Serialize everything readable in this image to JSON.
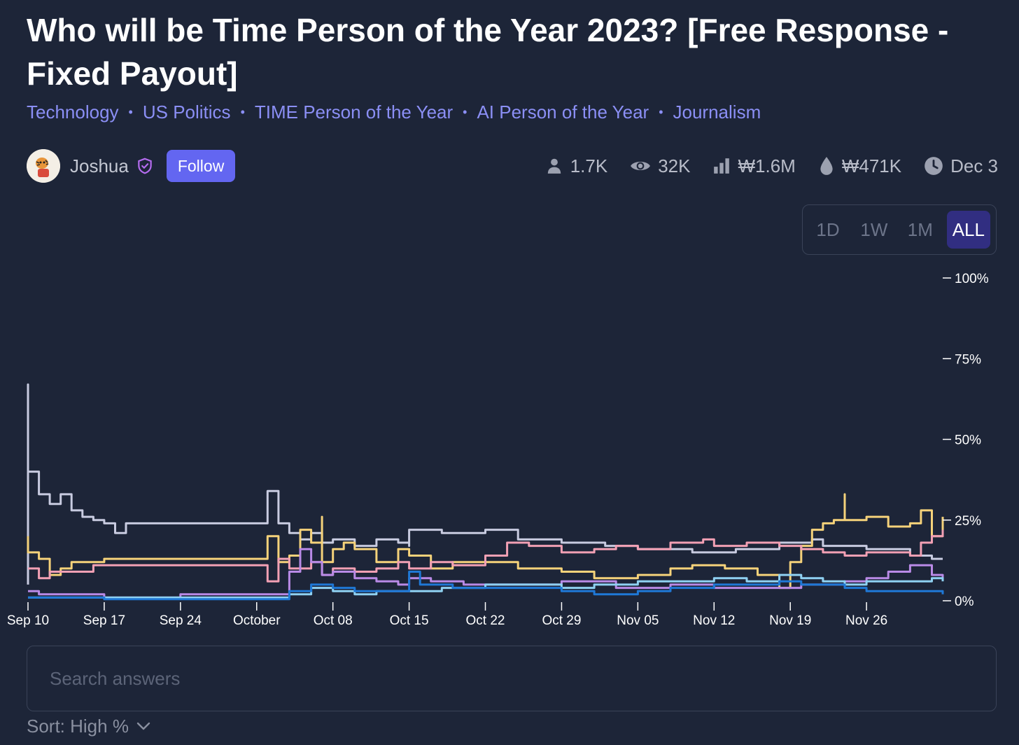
{
  "market": {
    "title": "Who will be Time Person of the Year 2023? [Free Response - Fixed Payout]",
    "tags": [
      "Technology",
      "US Politics",
      "TIME Person of the Year",
      "AI Person of the Year",
      "Journalism"
    ]
  },
  "author": {
    "name": "Joshua",
    "follow_label": "Follow",
    "avatar_icon": "avatar-icon",
    "badge_icon": "shield-check-icon"
  },
  "stats": {
    "traders": "1.7K",
    "views": "32K",
    "volume": "₩1.6M",
    "liquidity": "₩471K",
    "close_date": "Dec 3"
  },
  "range_tabs": {
    "options": [
      "1D",
      "1W",
      "1M",
      "ALL"
    ],
    "selected": "ALL"
  },
  "search": {
    "placeholder": "Search answers",
    "value": ""
  },
  "sort": {
    "label": "Sort: High %"
  },
  "colors": {
    "background": "#1d2538",
    "accent": "#6366f1",
    "tag": "#8b8ff5",
    "series": [
      "#c8cbe0",
      "#f5d27a",
      "#f2a0b4",
      "#b98ae6",
      "#8fd1f2",
      "#1f78d6"
    ]
  },
  "chart_data": {
    "type": "line",
    "ylim": [
      0,
      100
    ],
    "y_ticks": [
      "100%",
      "75%",
      "50%",
      "25%",
      "0%"
    ],
    "x_ticks": [
      "Sep 10",
      "Sep 17",
      "Sep 24",
      "October",
      "Oct 08",
      "Oct 15",
      "Oct 22",
      "Oct 29",
      "Nov 05",
      "Nov 12",
      "Nov 19",
      "Nov 26"
    ],
    "x_start": "Sep 10",
    "x_end": "Dec 3",
    "series": [
      {
        "color": "#c8cbe0",
        "points": [
          [
            "Sep 10",
            5
          ],
          [
            "Sep 10",
            67
          ],
          [
            "Sep 10",
            40
          ],
          [
            "Sep 11",
            33
          ],
          [
            "Sep 12",
            30
          ],
          [
            "Sep 13",
            33
          ],
          [
            "Sep 14",
            28
          ],
          [
            "Sep 15",
            26
          ],
          [
            "Sep 16",
            25
          ],
          [
            "Sep 17",
            24
          ],
          [
            "Sep 18",
            24
          ],
          [
            "Sep 18",
            21
          ],
          [
            "Sep 19",
            24
          ],
          [
            "Sep 24",
            24
          ],
          [
            "Oct 01",
            24
          ],
          [
            "Oct 02",
            34
          ],
          [
            "Oct 03",
            24
          ],
          [
            "Oct 04",
            21
          ],
          [
            "Oct 05",
            19
          ],
          [
            "Oct 06",
            21
          ],
          [
            "Oct 07",
            18
          ],
          [
            "Oct 08",
            19
          ],
          [
            "Oct 10",
            17
          ],
          [
            "Oct 12",
            19
          ],
          [
            "Oct 14",
            18
          ],
          [
            "Oct 15",
            17
          ],
          [
            "Oct 15",
            22
          ],
          [
            "Oct 18",
            21
          ],
          [
            "Oct 22",
            22
          ],
          [
            "Oct 25",
            19
          ],
          [
            "Oct 29",
            18
          ],
          [
            "Nov 02",
            17
          ],
          [
            "Nov 05",
            16
          ],
          [
            "Nov 10",
            15
          ],
          [
            "Nov 14",
            16
          ],
          [
            "Nov 18",
            18
          ],
          [
            "Nov 21",
            19
          ],
          [
            "Nov 22",
            17
          ],
          [
            "Nov 26",
            16
          ],
          [
            "Nov 30",
            14
          ],
          [
            "Dec 2",
            13
          ],
          [
            "Dec 3",
            13
          ]
        ]
      },
      {
        "color": "#f5d27a",
        "points": [
          [
            "Sep 10",
            20
          ],
          [
            "Sep 10",
            15
          ],
          [
            "Sep 11",
            13
          ],
          [
            "Sep 12",
            8
          ],
          [
            "Sep 13",
            10
          ],
          [
            "Sep 14",
            12
          ],
          [
            "Sep 17",
            13
          ],
          [
            "Sep 24",
            13
          ],
          [
            "Oct 01",
            13
          ],
          [
            "Oct 02",
            20
          ],
          [
            "Oct 03",
            12
          ],
          [
            "Oct 04",
            14
          ],
          [
            "Oct 05",
            22
          ],
          [
            "Oct 06",
            18
          ],
          [
            "Oct 07",
            26
          ],
          [
            "Oct 07",
            12
          ],
          [
            "Oct 08",
            16
          ],
          [
            "Oct 09",
            18
          ],
          [
            "Oct 10",
            16
          ],
          [
            "Oct 12",
            12
          ],
          [
            "Oct 14",
            16
          ],
          [
            "Oct 15",
            14
          ],
          [
            "Oct 17",
            10
          ],
          [
            "Oct 19",
            12
          ],
          [
            "Oct 22",
            12
          ],
          [
            "Oct 25",
            10
          ],
          [
            "Oct 29",
            9
          ],
          [
            "Nov 01",
            7
          ],
          [
            "Nov 03",
            7
          ],
          [
            "Nov 05",
            8
          ],
          [
            "Nov 08",
            10
          ],
          [
            "Nov 10",
            11
          ],
          [
            "Nov 13",
            10
          ],
          [
            "Nov 16",
            8
          ],
          [
            "Nov 18",
            4
          ],
          [
            "Nov 19",
            12
          ],
          [
            "Nov 20",
            17
          ],
          [
            "Nov 21",
            22
          ],
          [
            "Nov 22",
            24
          ],
          [
            "Nov 23",
            25
          ],
          [
            "Nov 24",
            33
          ],
          [
            "Nov 24",
            25
          ],
          [
            "Nov 26",
            26
          ],
          [
            "Nov 28",
            23
          ],
          [
            "Nov 30",
            24
          ],
          [
            "Dec 1",
            28
          ],
          [
            "Dec 2",
            20
          ],
          [
            "Dec 3",
            26
          ]
        ]
      },
      {
        "color": "#f2a0b4",
        "points": [
          [
            "Sep 10",
            10
          ],
          [
            "Sep 11",
            7
          ],
          [
            "Sep 12",
            9
          ],
          [
            "Sep 14",
            9
          ],
          [
            "Sep 16",
            11
          ],
          [
            "Sep 17",
            11
          ],
          [
            "Sep 24",
            11
          ],
          [
            "Oct 01",
            11
          ],
          [
            "Oct 02",
            6
          ],
          [
            "Oct 03",
            13
          ],
          [
            "Oct 04",
            10
          ],
          [
            "Oct 06",
            12
          ],
          [
            "Oct 07",
            8
          ],
          [
            "Oct 08",
            10
          ],
          [
            "Oct 10",
            9
          ],
          [
            "Oct 12",
            10
          ],
          [
            "Oct 14",
            12
          ],
          [
            "Oct 15",
            10
          ],
          [
            "Oct 17",
            12
          ],
          [
            "Oct 19",
            11
          ],
          [
            "Oct 22",
            14
          ],
          [
            "Oct 24",
            18
          ],
          [
            "Oct 26",
            17
          ],
          [
            "Oct 29",
            15
          ],
          [
            "Nov 01",
            16
          ],
          [
            "Nov 03",
            17
          ],
          [
            "Nov 05",
            16
          ],
          [
            "Nov 08",
            18
          ],
          [
            "Nov 11",
            19
          ],
          [
            "Nov 12",
            17
          ],
          [
            "Nov 15",
            18
          ],
          [
            "Nov 18",
            17
          ],
          [
            "Nov 20",
            16
          ],
          [
            "Nov 22",
            15
          ],
          [
            "Nov 24",
            14
          ],
          [
            "Nov 26",
            15
          ],
          [
            "Nov 30",
            14
          ],
          [
            "Dec 1",
            18
          ],
          [
            "Dec 2",
            20
          ],
          [
            "Dec 3",
            22
          ]
        ]
      },
      {
        "color": "#b98ae6",
        "points": [
          [
            "Sep 10",
            3
          ],
          [
            "Sep 11",
            2
          ],
          [
            "Sep 13",
            2
          ],
          [
            "Sep 17",
            1
          ],
          [
            "Sep 24",
            2
          ],
          [
            "Oct 01",
            2
          ],
          [
            "Oct 03",
            2
          ],
          [
            "Oct 04",
            9
          ],
          [
            "Oct 05",
            16
          ],
          [
            "Oct 06",
            12
          ],
          [
            "Oct 07",
            8
          ],
          [
            "Oct 08",
            9
          ],
          [
            "Oct 10",
            7
          ],
          [
            "Oct 12",
            6
          ],
          [
            "Oct 14",
            5
          ],
          [
            "Oct 15",
            7
          ],
          [
            "Oct 17",
            6
          ],
          [
            "Oct 20",
            5
          ],
          [
            "Oct 24",
            5
          ],
          [
            "Oct 29",
            6
          ],
          [
            "Nov 03",
            4
          ],
          [
            "Nov 05",
            4
          ],
          [
            "Nov 08",
            5
          ],
          [
            "Nov 12",
            4
          ],
          [
            "Nov 16",
            4
          ],
          [
            "Nov 20",
            5
          ],
          [
            "Nov 24",
            6
          ],
          [
            "Nov 26",
            7
          ],
          [
            "Nov 28",
            9
          ],
          [
            "Nov 30",
            11
          ],
          [
            "Dec 2",
            8
          ],
          [
            "Dec 3",
            7
          ]
        ]
      },
      {
        "color": "#8fd1f2",
        "points": [
          [
            "Sep 10",
            1
          ],
          [
            "Sep 17",
            1
          ],
          [
            "Sep 24",
            1
          ],
          [
            "Oct 01",
            1
          ],
          [
            "Oct 04",
            2
          ],
          [
            "Oct 06",
            4
          ],
          [
            "Oct 08",
            3
          ],
          [
            "Oct 10",
            2
          ],
          [
            "Oct 12",
            3
          ],
          [
            "Oct 15",
            3
          ],
          [
            "Oct 18",
            4
          ],
          [
            "Oct 22",
            5
          ],
          [
            "Oct 26",
            5
          ],
          [
            "Oct 29",
            4
          ],
          [
            "Nov 01",
            5
          ],
          [
            "Nov 05",
            6
          ],
          [
            "Nov 08",
            6
          ],
          [
            "Nov 12",
            7
          ],
          [
            "Nov 15",
            6
          ],
          [
            "Nov 18",
            8
          ],
          [
            "Nov 20",
            7
          ],
          [
            "Nov 22",
            6
          ],
          [
            "Nov 24",
            5
          ],
          [
            "Nov 26",
            6
          ],
          [
            "Nov 30",
            6
          ],
          [
            "Dec 2",
            7
          ],
          [
            "Dec 3",
            6
          ]
        ]
      },
      {
        "color": "#1f78d6",
        "points": [
          [
            "Sep 10",
            1
          ],
          [
            "Sep 17",
            0.5
          ],
          [
            "Sep 24",
            0.5
          ],
          [
            "Oct 01",
            0.5
          ],
          [
            "Oct 04",
            3
          ],
          [
            "Oct 06",
            5
          ],
          [
            "Oct 08",
            4
          ],
          [
            "Oct 10",
            3
          ],
          [
            "Oct 13",
            3
          ],
          [
            "Oct 15",
            4
          ],
          [
            "Oct 15",
            9
          ],
          [
            "Oct 16",
            5
          ],
          [
            "Oct 19",
            4
          ],
          [
            "Oct 22",
            4
          ],
          [
            "Oct 26",
            4
          ],
          [
            "Oct 29",
            3
          ],
          [
            "Nov 01",
            2
          ],
          [
            "Nov 03",
            2
          ],
          [
            "Nov 05",
            3
          ],
          [
            "Nov 08",
            4
          ],
          [
            "Nov 12",
            5
          ],
          [
            "Nov 15",
            5
          ],
          [
            "Nov 18",
            6
          ],
          [
            "Nov 20",
            5
          ],
          [
            "Nov 24",
            4
          ],
          [
            "Nov 26",
            3
          ],
          [
            "Nov 30",
            3
          ],
          [
            "Dec 3",
            2
          ]
        ]
      }
    ]
  }
}
